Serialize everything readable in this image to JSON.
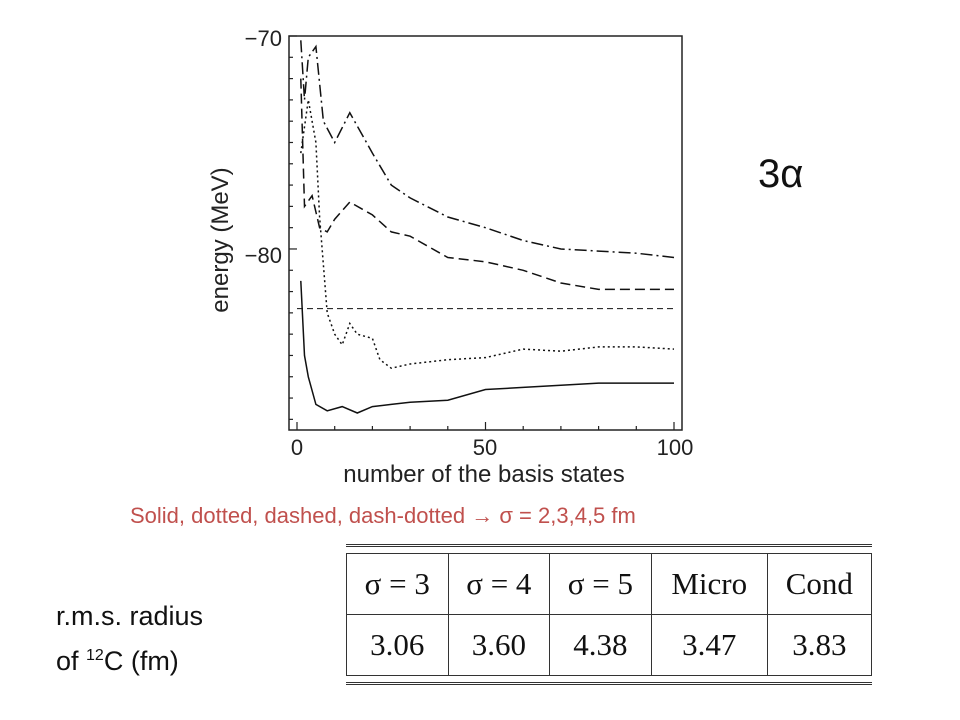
{
  "chart_data": {
    "type": "line",
    "xlabel": "number of the basis states",
    "ylabel": "energy (MeV)",
    "xlim": [
      0,
      100
    ],
    "ylim": [
      -88.5,
      -70
    ],
    "x_ticks": [
      "0",
      "50",
      "100"
    ],
    "y_ticks": [
      "−70",
      "−80"
    ],
    "grid": false,
    "series": [
      {
        "style": "solid",
        "x": [
          1,
          2,
          3,
          5,
          8,
          12,
          16,
          20,
          25,
          30,
          40,
          50,
          60,
          70,
          80,
          90,
          100
        ],
        "y": [
          -81.5,
          -85,
          -86,
          -87.3,
          -87.6,
          -87.4,
          -87.7,
          -87.4,
          -87.3,
          -87.2,
          -87.1,
          -86.6,
          -86.5,
          -86.4,
          -86.3,
          -86.3,
          -86.3
        ]
      },
      {
        "style": "dotted",
        "x": [
          1,
          3,
          5,
          6,
          8,
          10,
          12,
          14,
          16,
          20,
          22,
          25,
          30,
          40,
          50,
          60,
          70,
          80,
          90,
          100
        ],
        "y": [
          -75.5,
          -73,
          -75,
          -78.5,
          -83,
          -84,
          -84.5,
          -83.5,
          -84,
          -84.2,
          -85.2,
          -85.6,
          -85.4,
          -85.2,
          -85.1,
          -84.7,
          -84.8,
          -84.6,
          -84.6,
          -84.7
        ]
      },
      {
        "style": "dashed",
        "x": [
          1,
          2,
          4,
          6,
          8,
          10,
          14,
          20,
          25,
          30,
          40,
          50,
          60,
          70,
          80,
          90,
          100
        ],
        "y": [
          -72,
          -78,
          -77.5,
          -79,
          -79.2,
          -78.6,
          -77.8,
          -78.4,
          -79.2,
          -79.4,
          -80.4,
          -80.6,
          -81,
          -81.6,
          -81.9,
          -81.9,
          -81.9
        ]
      },
      {
        "style": "dash-dotted",
        "x": [
          1,
          2,
          3,
          5,
          7,
          10,
          14,
          20,
          25,
          30,
          40,
          50,
          60,
          70,
          80,
          90,
          100
        ],
        "y": [
          -70.2,
          -73,
          -71,
          -70.5,
          -74,
          -75,
          -73.6,
          -75.5,
          -77,
          -77.6,
          -78.5,
          -79,
          -79.6,
          -80,
          -80.1,
          -80.2,
          -80.4
        ]
      },
      {
        "style": "reference-dashed",
        "x": [
          0,
          100
        ],
        "y": [
          -82.8,
          -82.8
        ]
      }
    ]
  },
  "labels": {
    "system": "3α",
    "caption_text": "Solid, dotted, dashed, dash-dotted ",
    "caption_arrow": "→",
    "caption_value": " σ = 2,3,4,5 fm",
    "rms_line1": "r.m.s. radius",
    "rms_line2_pre": "of ",
    "rms_sup": "12",
    "rms_line2_post": "C  (fm)"
  },
  "table": {
    "headers": [
      "σ = 3",
      "σ = 4",
      "σ = 5",
      "Micro",
      "Cond"
    ],
    "values": [
      "3.06",
      "3.60",
      "4.38",
      "3.47",
      "3.83"
    ]
  },
  "colors": {
    "caption": "#c0504d",
    "line": "#111111"
  }
}
